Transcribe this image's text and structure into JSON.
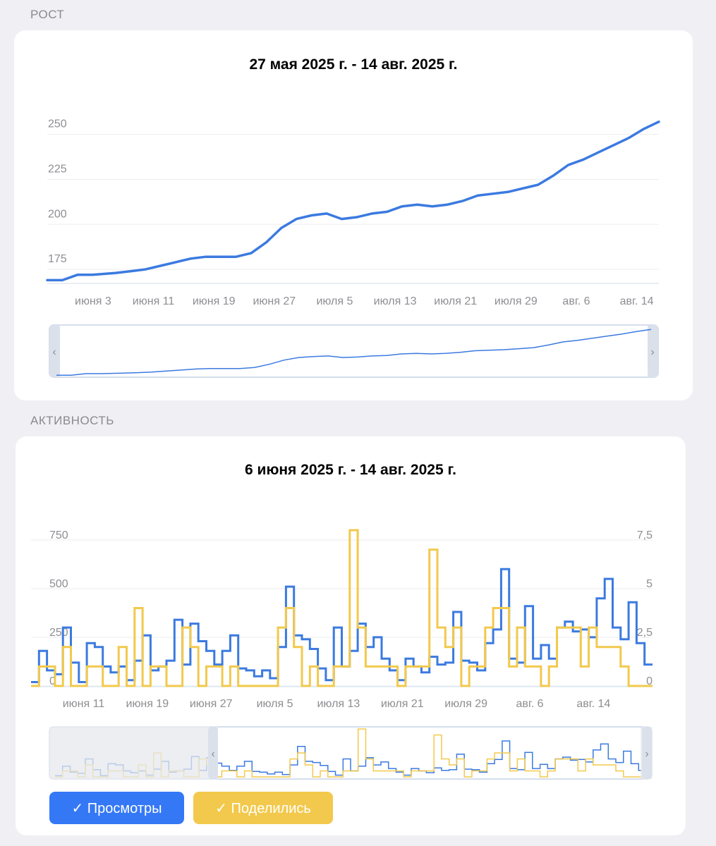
{
  "growth": {
    "section_label": "РОСТ",
    "chart_data": {
      "type": "line",
      "title": "27 мая 2025 г. - 14 авг. 2025 г.",
      "ylim": [
        168,
        260
      ],
      "y_ticks": [
        175,
        200,
        225,
        250
      ],
      "x_tick_labels": [
        "июня 3",
        "июня 11",
        "июня 19",
        "июня 27",
        "июля 5",
        "июля 13",
        "июля 21",
        "июля 29",
        "авг. 6",
        "авг. 14"
      ],
      "x_tick_days": [
        7,
        15,
        23,
        31,
        39,
        47,
        55,
        63,
        71,
        79
      ],
      "series": [
        {
          "color": "#3b7ae0",
          "x_days": [
            0,
            2,
            4,
            6,
            9,
            11,
            13,
            15,
            17,
            19,
            21,
            23,
            25,
            27,
            29,
            31,
            33,
            35,
            37,
            39,
            41,
            43,
            45,
            47,
            49,
            51,
            53,
            55,
            57,
            59,
            61,
            63,
            65,
            67,
            69,
            71,
            73,
            75,
            77,
            79,
            81
          ],
          "values": [
            169,
            169,
            172,
            172,
            173,
            174,
            175,
            177,
            179,
            181,
            182,
            182,
            182,
            184,
            190,
            198,
            203,
            205,
            206,
            203,
            204,
            206,
            207,
            210,
            211,
            210,
            211,
            213,
            216,
            217,
            218,
            220,
            222,
            227,
            233,
            236,
            240,
            244,
            248,
            253,
            257
          ]
        }
      ]
    },
    "navigator_color": "#c9d3e6"
  },
  "activity": {
    "section_label": "АКТИВНОСТЬ",
    "chart_data": {
      "type": "line",
      "title": "6 июня 2025 г. - 14 авг. 2025 г.",
      "y_left_ticks": [
        "750",
        "500",
        "250",
        "0"
      ],
      "y_right_ticks": [
        "7,5",
        "5",
        "2,5",
        "0"
      ],
      "ylim_left": [
        0,
        800
      ],
      "ylim_right": [
        0,
        8
      ],
      "x_tick_labels": [
        "июня 11",
        "июня 19",
        "июня 27",
        "июля 5",
        "июля 13",
        "июля 21",
        "июля 29",
        "авг. 6",
        "авг. 14"
      ],
      "x_tick_days": [
        5,
        13,
        21,
        29,
        37,
        45,
        53,
        61,
        69
      ],
      "series": [
        {
          "name": "Просмотры",
          "color": "#3b7ae0",
          "step": true,
          "values": [
            20,
            180,
            80,
            60,
            300,
            120,
            20,
            220,
            200,
            100,
            70,
            100,
            30,
            130,
            260,
            80,
            100,
            130,
            340,
            110,
            320,
            230,
            180,
            110,
            180,
            260,
            90,
            80,
            50,
            80,
            40,
            200,
            510,
            260,
            240,
            190,
            90,
            30,
            300,
            100,
            180,
            320,
            200,
            250,
            140,
            80,
            30,
            140,
            100,
            70,
            150,
            110,
            120,
            380,
            130,
            120,
            80,
            220,
            290,
            600,
            140,
            120,
            410,
            140,
            210,
            140,
            300,
            330,
            280,
            290,
            250,
            450,
            550,
            300,
            240,
            430,
            220,
            110
          ]
        },
        {
          "name": "Поделились",
          "color": "#f2c94c",
          "step": true,
          "values": [
            0,
            1,
            1,
            0,
            2,
            0,
            0,
            1,
            1,
            0,
            0,
            2,
            0,
            4,
            0,
            1,
            1,
            0,
            0,
            3,
            2,
            0,
            1,
            1,
            0,
            1,
            0,
            0,
            0,
            0,
            0,
            3,
            4,
            2,
            0,
            1,
            0,
            0,
            1,
            1,
            8,
            3,
            1,
            1,
            1,
            1,
            0,
            1,
            1,
            1,
            7,
            3,
            2,
            3,
            0,
            1,
            1,
            3,
            4,
            4,
            1,
            3,
            1,
            1,
            0,
            1,
            3,
            3,
            3,
            1,
            3,
            2,
            2,
            2,
            1,
            0,
            0,
            0
          ]
        }
      ]
    },
    "buttons": [
      {
        "label": "✓ Просмотры",
        "color": "#3478f6"
      },
      {
        "label": "✓ Поделились",
        "color": "#f2c94c"
      }
    ]
  }
}
